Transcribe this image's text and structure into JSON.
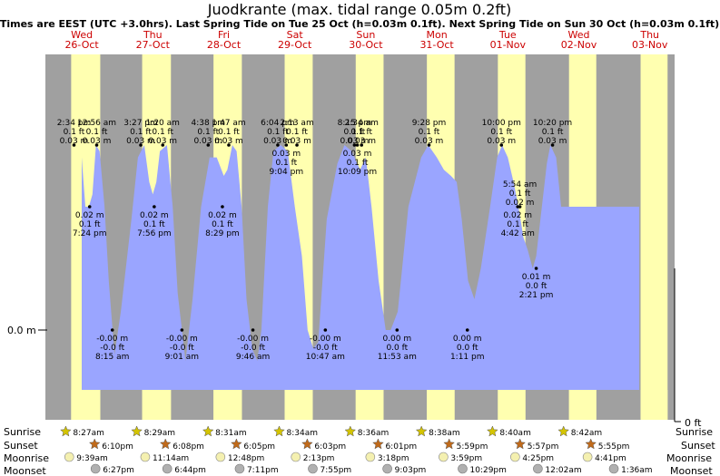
{
  "chart_data": {
    "type": "area",
    "title": "Juodkrante (max. tidal range 0.05m 0.2ft)",
    "subtitle": "Times are EEST (UTC +3.0hrs). Last Spring Tide on Tue 25 Oct (h=0.03m 0.1ft). Next Spring Tide on Sun 30 Oct (h=0.03m 0.1ft)",
    "ylabel_left": "0.0 m",
    "ylabel_right": "0 ft",
    "x_range_days": [
      0,
      8.25
    ],
    "y_range_m": [
      -0.01,
      0.045
    ],
    "days": [
      {
        "dow": "Wed",
        "date": "26-Oct"
      },
      {
        "dow": "Thu",
        "date": "27-Oct"
      },
      {
        "dow": "Fri",
        "date": "28-Oct"
      },
      {
        "dow": "Sat",
        "date": "29-Oct"
      },
      {
        "dow": "Sun",
        "date": "30-Oct"
      },
      {
        "dow": "Mon",
        "date": "31-Oct"
      },
      {
        "dow": "Tue",
        "date": "01-Nov"
      },
      {
        "dow": "Wed",
        "date": "02-Nov"
      },
      {
        "dow": "Thu",
        "date": "03-Nov"
      }
    ],
    "curve_points": [
      [
        0.02,
        0.026
      ],
      [
        0.06,
        0.02
      ],
      [
        0.1,
        0.003
      ],
      [
        0.2,
        0.003
      ],
      [
        0.28,
        0.012
      ],
      [
        0.35,
        0.023
      ],
      [
        0.42,
        0.03
      ],
      [
        0.47,
        0.028
      ],
      [
        0.55,
        0.02
      ],
      [
        0.6,
        0.02
      ],
      [
        0.65,
        0.022
      ],
      [
        0.7,
        0.03
      ],
      [
        0.75,
        0.029
      ],
      [
        0.82,
        0.02
      ],
      [
        0.88,
        0.008
      ],
      [
        0.96,
        -0.004
      ],
      [
        1.05,
        0.003
      ],
      [
        1.2,
        0.018
      ],
      [
        1.29,
        0.028
      ],
      [
        1.38,
        0.03
      ],
      [
        1.45,
        0.024
      ],
      [
        1.5,
        0.022
      ],
      [
        1.55,
        0.024
      ],
      [
        1.6,
        0.029
      ],
      [
        1.7,
        0.03
      ],
      [
        1.78,
        0.02
      ],
      [
        1.85,
        0.006
      ],
      [
        1.96,
        -0.005
      ],
      [
        2.06,
        0.005
      ],
      [
        2.18,
        0.02
      ],
      [
        2.3,
        0.028
      ],
      [
        2.4,
        0.028
      ],
      [
        2.5,
        0.025
      ],
      [
        2.55,
        0.026
      ],
      [
        2.62,
        0.03
      ],
      [
        2.68,
        0.029
      ],
      [
        2.75,
        0.02
      ],
      [
        2.82,
        0.005
      ],
      [
        2.9,
        -0.003
      ],
      [
        2.97,
        -0.005
      ],
      [
        3.03,
        0.0
      ],
      [
        3.12,
        0.02
      ],
      [
        3.2,
        0.029
      ],
      [
        3.3,
        0.03
      ],
      [
        3.4,
        0.029
      ],
      [
        3.5,
        0.02
      ],
      [
        3.6,
        0.012
      ],
      [
        3.68,
        0.0
      ],
      [
        3.76,
        -0.003
      ],
      [
        3.83,
        -0.002
      ],
      [
        3.95,
        0.018
      ],
      [
        4.1,
        0.027
      ],
      [
        4.2,
        0.03
      ],
      [
        4.3,
        0.029
      ],
      [
        4.42,
        0.026
      ],
      [
        4.5,
        0.028
      ],
      [
        4.58,
        0.02
      ],
      [
        4.68,
        0.008
      ],
      [
        4.78,
        0.0
      ],
      [
        4.85,
        0.0
      ],
      [
        4.95,
        0.003
      ],
      [
        5.1,
        0.02
      ],
      [
        5.28,
        0.028
      ],
      [
        5.38,
        0.03
      ],
      [
        5.5,
        0.028
      ],
      [
        5.6,
        0.026
      ],
      [
        5.7,
        0.025
      ],
      [
        5.78,
        0.024
      ],
      [
        5.85,
        0.018
      ],
      [
        5.94,
        0.008
      ],
      [
        6.03,
        0.005
      ],
      [
        6.12,
        0.01
      ],
      [
        6.25,
        0.02
      ],
      [
        6.35,
        0.028
      ],
      [
        6.42,
        0.03
      ],
      [
        6.5,
        0.028
      ],
      [
        6.58,
        0.024
      ],
      [
        6.65,
        0.02
      ],
      [
        6.72,
        0.015
      ],
      [
        6.78,
        0.013
      ],
      [
        6.85,
        0.01
      ],
      [
        6.9,
        0.012
      ],
      [
        6.98,
        0.02
      ],
      [
        7.05,
        0.027
      ],
      [
        7.1,
        0.03
      ],
      [
        7.18,
        0.028
      ],
      [
        7.25,
        0.02
      ]
    ],
    "events": [
      {
        "time": "2:34 pm",
        "ft": "0.1 ft",
        "m": "0.03 m",
        "d": 0.39,
        "h": 0.03,
        "pos": "above"
      },
      {
        "time": "12:56 am",
        "ft": "0.1 ft",
        "m": "0.03 m",
        "d": 0.71,
        "h": 0.03,
        "pos": "above"
      },
      {
        "time": "7:24 pm",
        "ft": "0.1 ft",
        "m": "0.02 m",
        "d": 0.61,
        "h": 0.02,
        "pos": "below"
      },
      {
        "time": "8:15 am",
        "ft": "-0.0 ft",
        "m": "-0.00 m",
        "d": 0.93,
        "h": 0.0,
        "pos": "below"
      },
      {
        "time": "3:27 pm",
        "ft": "0.1 ft",
        "m": "0.03 m",
        "d": 1.33,
        "h": 0.03,
        "pos": "above"
      },
      {
        "time": "1:20 am",
        "ft": "0.1 ft",
        "m": "0.03 m",
        "d": 1.64,
        "h": 0.03,
        "pos": "above"
      },
      {
        "time": "7:56 pm",
        "ft": "0.1 ft",
        "m": "0.02 m",
        "d": 1.52,
        "h": 0.02,
        "pos": "below"
      },
      {
        "time": "9:01 am",
        "ft": "-0.0 ft",
        "m": "-0.00 m",
        "d": 1.91,
        "h": 0.0,
        "pos": "below"
      },
      {
        "time": "4:38 pm",
        "ft": "0.1 ft",
        "m": "0.03 m",
        "d": 2.28,
        "h": 0.03,
        "pos": "above"
      },
      {
        "time": "1:47 am",
        "ft": "0.1 ft",
        "m": "0.03 m",
        "d": 2.57,
        "h": 0.03,
        "pos": "above"
      },
      {
        "time": "8:29 pm",
        "ft": "0.1 ft",
        "m": "0.02 m",
        "d": 2.48,
        "h": 0.02,
        "pos": "below"
      },
      {
        "time": "9:46 am",
        "ft": "-0.0 ft",
        "m": "-0.00 m",
        "d": 2.91,
        "h": 0.0,
        "pos": "below"
      },
      {
        "time": "6:04 pm",
        "ft": "0.1 ft",
        "m": "0.03 m",
        "d": 3.26,
        "h": 0.03,
        "pos": "above"
      },
      {
        "time": "2:13 am",
        "ft": "0.1 ft",
        "m": "0.03 m",
        "d": 3.53,
        "h": 0.03,
        "pos": "above"
      },
      {
        "time": "9:04 pm",
        "ft": "0.1 ft",
        "m": "0.03 m",
        "d": 3.38,
        "h": 0.03,
        "pos": "below"
      },
      {
        "time": "10:47 am",
        "ft": "-0.0 ft",
        "m": "-0.00 m",
        "d": 3.93,
        "h": 0.0,
        "pos": "below"
      },
      {
        "time": "8:15 pm",
        "ft": "0.1 ft",
        "m": "0.03 m",
        "d": 4.34,
        "h": 0.03,
        "pos": "above"
      },
      {
        "time": "2:34 am",
        "ft": "0.1 ft",
        "m": "0.03 m",
        "d": 4.44,
        "h": 0.03,
        "pos": "above"
      },
      {
        "time": "10:09 pm",
        "ft": "0.1 ft",
        "m": "0.03 m",
        "d": 4.38,
        "h": 0.03,
        "pos": "below"
      },
      {
        "time": "11:53 am",
        "ft": "0.0 ft",
        "m": "0.00 m",
        "d": 4.94,
        "h": 0.0,
        "pos": "below"
      },
      {
        "time": "9:28 pm",
        "ft": "0.1 ft",
        "m": "0.03 m",
        "d": 5.39,
        "h": 0.03,
        "pos": "above"
      },
      {
        "time": "1:11 pm",
        "ft": "0.0 ft",
        "m": "0.00 m",
        "d": 5.93,
        "h": 0.0,
        "pos": "below"
      },
      {
        "time": "10:00 pm",
        "ft": "0.1 ft",
        "m": "0.03 m",
        "d": 6.41,
        "h": 0.03,
        "pos": "above"
      },
      {
        "time": "5:54 am",
        "ft": "0.1 ft",
        "m": "0.02 m",
        "d": 6.67,
        "h": 0.02,
        "pos": "above"
      },
      {
        "time": "4:42 am",
        "ft": "0.1 ft",
        "m": "0.02 m",
        "d": 6.64,
        "h": 0.02,
        "pos": "below"
      },
      {
        "time": "2:21 pm",
        "ft": "0.0 ft",
        "m": "0.01 m",
        "d": 6.9,
        "h": 0.01,
        "pos": "below"
      },
      {
        "time": "10:20 pm",
        "ft": "0.1 ft",
        "m": "0.03 m",
        "d": 7.13,
        "h": 0.03,
        "pos": "above"
      }
    ],
    "daylight_days": [
      {
        "sunrise_d": 0.35,
        "sunset_d": 0.76
      },
      {
        "sunrise_d": 1.35,
        "sunset_d": 1.755
      },
      {
        "sunrise_d": 2.355,
        "sunset_d": 2.754
      },
      {
        "sunrise_d": 3.357,
        "sunset_d": 3.752
      },
      {
        "sunrise_d": 4.358,
        "sunset_d": 4.75
      },
      {
        "sunrise_d": 5.36,
        "sunset_d": 5.75
      },
      {
        "sunrise_d": 6.36,
        "sunset_d": 6.748
      },
      {
        "sunrise_d": 7.362,
        "sunset_d": 7.746
      },
      {
        "sunrise_d": 8.37,
        "sunset_d": 8.75
      }
    ],
    "astro": {
      "row_labels": {
        "sunrise": "Sunrise",
        "sunset": "Sunset",
        "moonrise": "Moonrise",
        "moonset": "Moonset"
      },
      "sunrise": [
        {
          "d": 0.35,
          "t": "8:27am"
        },
        {
          "d": 1.35,
          "t": "8:29am"
        },
        {
          "d": 2.355,
          "t": "8:31am"
        },
        {
          "d": 3.357,
          "t": "8:34am"
        },
        {
          "d": 4.358,
          "t": "8:36am"
        },
        {
          "d": 5.36,
          "t": "8:38am"
        },
        {
          "d": 6.36,
          "t": "8:40am"
        },
        {
          "d": 7.362,
          "t": "8:42am"
        }
      ],
      "sunset": [
        {
          "d": 0.757,
          "t": "6:10pm"
        },
        {
          "d": 1.755,
          "t": "6:08pm"
        },
        {
          "d": 2.754,
          "t": "6:05pm"
        },
        {
          "d": 3.752,
          "t": "6:03pm"
        },
        {
          "d": 4.75,
          "t": "6:01pm"
        },
        {
          "d": 5.75,
          "t": "5:59pm"
        },
        {
          "d": 6.748,
          "t": "5:57pm"
        },
        {
          "d": 7.746,
          "t": "5:55pm"
        }
      ],
      "moonrise": [
        {
          "d": 0.4,
          "t": "9:39am"
        },
        {
          "d": 1.47,
          "t": "11:14am"
        },
        {
          "d": 2.53,
          "t": "12:48pm"
        },
        {
          "d": 3.59,
          "t": "2:13pm"
        },
        {
          "d": 4.64,
          "t": "3:18pm"
        },
        {
          "d": 5.67,
          "t": "3:59pm"
        },
        {
          "d": 6.68,
          "t": "4:25pm"
        },
        {
          "d": 7.7,
          "t": "4:41pm"
        }
      ],
      "moonset": [
        {
          "d": 0.77,
          "t": "6:27pm"
        },
        {
          "d": 1.78,
          "t": "6:44pm"
        },
        {
          "d": 2.8,
          "t": "7:11pm"
        },
        {
          "d": 3.83,
          "t": "7:55pm"
        },
        {
          "d": 4.88,
          "t": "9:03pm"
        },
        {
          "d": 5.94,
          "t": "10:29pm"
        },
        {
          "d": 7.0,
          "t": "12:02am"
        },
        {
          "d": 8.07,
          "t": "1:36am"
        }
      ]
    }
  },
  "colors": {
    "night": "#a0a0a0",
    "day": "#ffffb0",
    "water": "#9aa5ff",
    "day_label": "#cc0000",
    "sun": "#d4c400",
    "sunset": "#c06a1a",
    "moon": "#f4f0b0",
    "moonset": "#b0b0b0"
  }
}
